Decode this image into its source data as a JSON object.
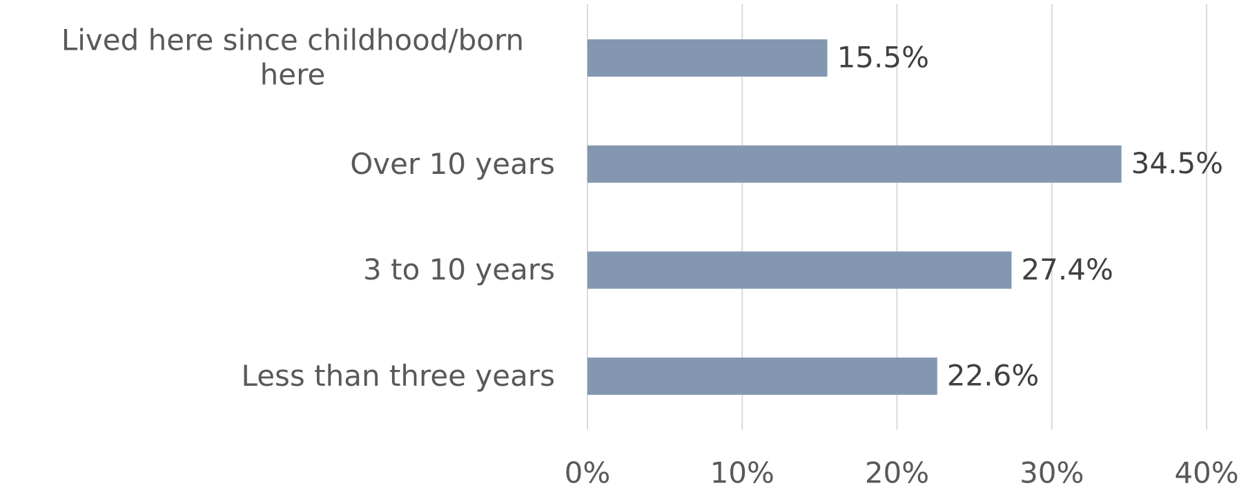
{
  "chart_data": {
    "type": "bar",
    "orientation": "horizontal",
    "categories": [
      "Lived here since childhood/born here",
      "Over 10 years",
      "3 to 10 years",
      "Less than three years"
    ],
    "values": [
      15.5,
      34.5,
      27.4,
      22.6
    ],
    "value_labels": [
      "15.5%",
      "34.5%",
      "27.4%",
      "22.6%"
    ],
    "color": "#8497b0",
    "xlim": [
      0,
      40
    ],
    "xticks": [
      {
        "value": 0,
        "label": "0%"
      },
      {
        "value": 10,
        "label": "10%"
      },
      {
        "value": 20,
        "label": "20%"
      },
      {
        "value": 30,
        "label": "30%"
      },
      {
        "value": 40,
        "label": "40%"
      }
    ],
    "grid": true
  }
}
